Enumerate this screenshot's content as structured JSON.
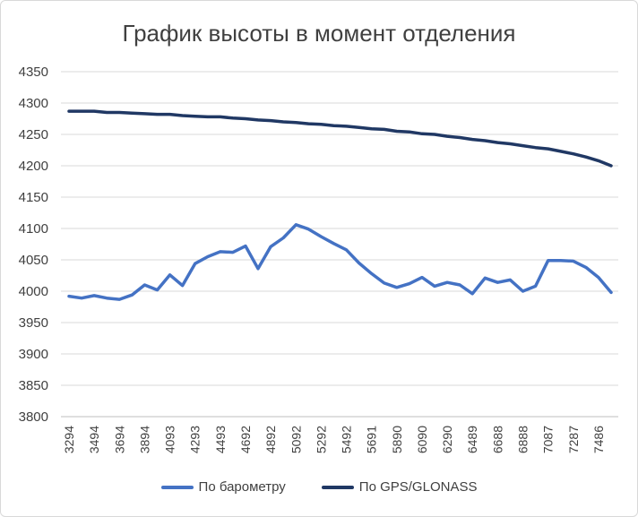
{
  "chart_data": {
    "type": "line",
    "title": "График высоты в момент отделения",
    "ylim": [
      3800,
      4350
    ],
    "yticks": [
      3800,
      3850,
      3900,
      3950,
      4000,
      4050,
      4100,
      4150,
      4200,
      4250,
      4300,
      4350
    ],
    "grid": true,
    "legend_position": "bottom",
    "x_tick_labels": [
      "3294",
      "3494",
      "3694",
      "3894",
      "4093",
      "4293",
      "4493",
      "4692",
      "4892",
      "5092",
      "5292",
      "5492",
      "5691",
      "5890",
      "6090",
      "6290",
      "6489",
      "6688",
      "6888",
      "7087",
      "7287",
      "7486"
    ],
    "points_count": 44,
    "series": [
      {
        "name": "По барометру",
        "color": "#4472c4",
        "values": [
          3992,
          3989,
          3993,
          3989,
          3987,
          3994,
          4010,
          4002,
          4026,
          4009,
          4044,
          4055,
          4063,
          4062,
          4072,
          4036,
          4071,
          4085,
          4106,
          4099,
          4087,
          4076,
          4066,
          4045,
          4028,
          4013,
          4006,
          4012,
          4022,
          4008,
          4014,
          4010,
          3996,
          4021,
          4014,
          4018,
          4000,
          4008,
          4049,
          4049,
          4048,
          4038,
          4022,
          3998
        ]
      },
      {
        "name": "По GPS/GLONASS",
        "color": "#203864",
        "values": [
          4287,
          4287,
          4287,
          4285,
          4285,
          4284,
          4283,
          4282,
          4282,
          4280,
          4279,
          4278,
          4278,
          4276,
          4275,
          4273,
          4272,
          4270,
          4269,
          4267,
          4266,
          4264,
          4263,
          4261,
          4259,
          4258,
          4255,
          4254,
          4251,
          4250,
          4247,
          4245,
          4242,
          4240,
          4237,
          4235,
          4232,
          4229,
          4227,
          4223,
          4219,
          4214,
          4208,
          4200
        ]
      }
    ]
  }
}
